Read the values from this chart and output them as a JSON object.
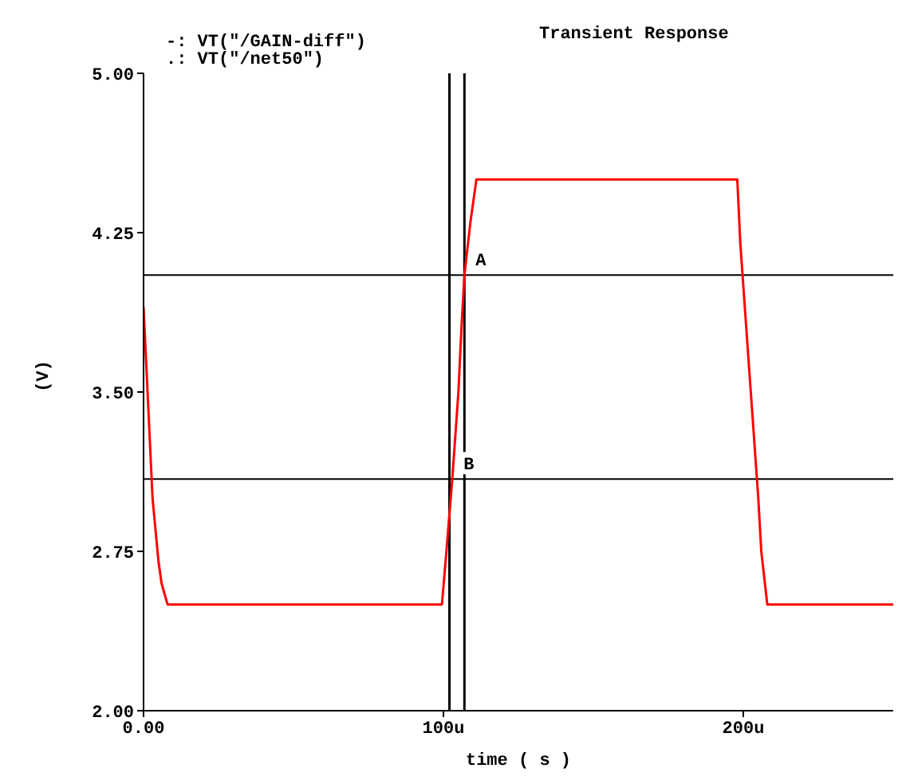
{
  "chart_data": {
    "type": "line",
    "title": "Transient Response",
    "xlabel": "time ( s )",
    "ylabel": "(V)",
    "annotations": [
      "-: VT(\"/GAIN-diff\")",
      ".: VT(\"/net50\")",
      {
        "text": "A",
        "x": 107,
        "y": 4.05
      },
      {
        "text": "B",
        "x": 103,
        "y": 3.09
      }
    ],
    "x": [
      0,
      1,
      2,
      3,
      4,
      5,
      6,
      8,
      99.5,
      101,
      103,
      105,
      106,
      107,
      109,
      111,
      198,
      199,
      201,
      203,
      205,
      206,
      208,
      250
    ],
    "series": [
      {
        "color": "#ff0000",
        "values": [
          3.9,
          3.6,
          3.3,
          3.0,
          2.85,
          2.7,
          2.6,
          2.5,
          2.5,
          2.75,
          3.1,
          3.5,
          3.8,
          4.05,
          4.3,
          4.5,
          4.5,
          4.2,
          3.8,
          3.4,
          3.0,
          2.75,
          2.5,
          2.5
        ]
      }
    ],
    "xlim": [
      0,
      250
    ],
    "ylim": [
      2,
      5
    ],
    "xticks": [
      {
        "value": 0,
        "label": "0.00"
      },
      {
        "value": 100,
        "label": "100u"
      },
      {
        "value": 200,
        "label": "200u"
      }
    ],
    "yticks": [
      {
        "value": 2,
        "label": "2.00"
      },
      {
        "value": 2.75,
        "label": "2.75"
      },
      {
        "value": 3.5,
        "label": "3.50"
      },
      {
        "value": 4.25,
        "label": "4.25"
      },
      {
        "value": 5,
        "label": "5.00"
      }
    ],
    "ref_lines": [
      {
        "axis": "y",
        "value": 4.05,
        "color": "#000000"
      },
      {
        "axis": "y",
        "value": 3.09,
        "color": "#000000"
      },
      {
        "axis": "x",
        "value": 102,
        "color": "#000000"
      },
      {
        "axis": "x",
        "value": 107,
        "color": "#000000"
      }
    ],
    "grid": false,
    "legend": false,
    "marker": "none",
    "line_style": "solid"
  }
}
